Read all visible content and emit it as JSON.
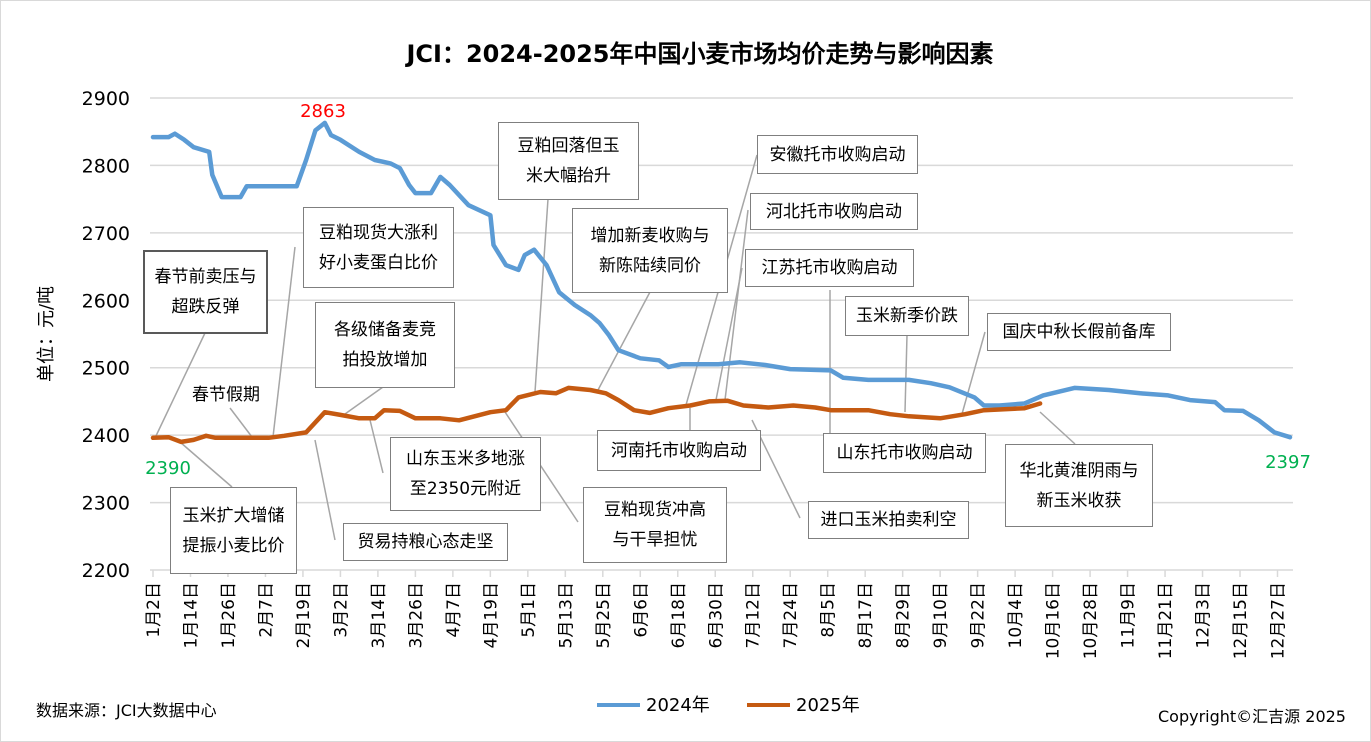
{
  "chart_data": {
    "type": "line",
    "title": "JCI：2024-2025年中国小麦市场均价走势与影响因素",
    "ylabel": "单位：元/吨",
    "xlabel": "",
    "ylim": [
      2200,
      2900
    ],
    "yticks": [
      2200,
      2300,
      2400,
      2500,
      2600,
      2700,
      2800,
      2900
    ],
    "x_unit": "day of year offset from 1月2日",
    "x_range": [
      0,
      364
    ],
    "xtick_labels": [
      "1月2日",
      "1月14日",
      "1月26日",
      "2月7日",
      "2月19日",
      "3月2日",
      "3月14日",
      "3月26日",
      "4月7日",
      "4月19日",
      "5月1日",
      "5月13日",
      "5月25日",
      "6月6日",
      "6月18日",
      "6月30日",
      "7月12日",
      "7月24日",
      "8月5日",
      "8月17日",
      "8月29日",
      "9月10日",
      "9月22日",
      "10月4日",
      "10月16日",
      "10月28日",
      "11月9日",
      "11月21日",
      "12月3日",
      "12月15日",
      "12月27日"
    ],
    "grid": true,
    "legend_position": "bottom",
    "series": [
      {
        "name": "2024年",
        "color": "#5b9bd5",
        "points": [
          [
            0,
            2842
          ],
          [
            5,
            2842
          ],
          [
            7,
            2847
          ],
          [
            10,
            2838
          ],
          [
            13,
            2827
          ],
          [
            18,
            2820
          ],
          [
            19,
            2786
          ],
          [
            22,
            2753
          ],
          [
            28,
            2753
          ],
          [
            30,
            2769
          ],
          [
            46,
            2769
          ],
          [
            49,
            2808
          ],
          [
            52,
            2852
          ],
          [
            55,
            2863
          ],
          [
            57,
            2845
          ],
          [
            60,
            2838
          ],
          [
            66,
            2820
          ],
          [
            71,
            2808
          ],
          [
            76,
            2803
          ],
          [
            79,
            2796
          ],
          [
            82,
            2771
          ],
          [
            84,
            2759
          ],
          [
            89,
            2759
          ],
          [
            92,
            2783
          ],
          [
            95,
            2771
          ],
          [
            101,
            2741
          ],
          [
            108,
            2726
          ],
          [
            109,
            2682
          ],
          [
            113,
            2652
          ],
          [
            117,
            2645
          ],
          [
            119,
            2667
          ],
          [
            122,
            2675
          ],
          [
            126,
            2652
          ],
          [
            130,
            2612
          ],
          [
            135,
            2593
          ],
          [
            140,
            2578
          ],
          [
            143,
            2566
          ],
          [
            146,
            2548
          ],
          [
            149,
            2526
          ],
          [
            156,
            2514
          ],
          [
            162,
            2511
          ],
          [
            165,
            2501
          ],
          [
            169,
            2505
          ],
          [
            181,
            2505
          ],
          [
            188,
            2508
          ],
          [
            196,
            2504
          ],
          [
            204,
            2498
          ],
          [
            217,
            2496
          ],
          [
            221,
            2485
          ],
          [
            229,
            2482
          ],
          [
            242,
            2482
          ],
          [
            249,
            2477
          ],
          [
            255,
            2471
          ],
          [
            263,
            2456
          ],
          [
            266,
            2444
          ],
          [
            271,
            2444
          ],
          [
            279,
            2447
          ],
          [
            285,
            2459
          ],
          [
            295,
            2470
          ],
          [
            306,
            2467
          ],
          [
            316,
            2462
          ],
          [
            325,
            2459
          ],
          [
            332,
            2452
          ],
          [
            340,
            2449
          ],
          [
            343,
            2437
          ],
          [
            349,
            2436
          ],
          [
            354,
            2422
          ],
          [
            359,
            2404
          ],
          [
            364,
            2397
          ]
        ]
      },
      {
        "name": "2025年",
        "color": "#c55a11",
        "points": [
          [
            0,
            2396
          ],
          [
            5,
            2397
          ],
          [
            9,
            2390
          ],
          [
            13,
            2393
          ],
          [
            17,
            2399
          ],
          [
            20,
            2396
          ],
          [
            37,
            2396
          ],
          [
            42,
            2399
          ],
          [
            49,
            2404
          ],
          [
            55,
            2434
          ],
          [
            60,
            2430
          ],
          [
            66,
            2425
          ],
          [
            71,
            2425
          ],
          [
            74,
            2437
          ],
          [
            79,
            2436
          ],
          [
            84,
            2425
          ],
          [
            92,
            2425
          ],
          [
            98,
            2422
          ],
          [
            108,
            2434
          ],
          [
            113,
            2437
          ],
          [
            117,
            2456
          ],
          [
            124,
            2464
          ],
          [
            129,
            2462
          ],
          [
            133,
            2470
          ],
          [
            140,
            2467
          ],
          [
            145,
            2462
          ],
          [
            149,
            2452
          ],
          [
            154,
            2437
          ],
          [
            159,
            2433
          ],
          [
            165,
            2440
          ],
          [
            172,
            2444
          ],
          [
            178,
            2450
          ],
          [
            184,
            2451
          ],
          [
            189,
            2444
          ],
          [
            197,
            2441
          ],
          [
            205,
            2444
          ],
          [
            212,
            2441
          ],
          [
            217,
            2437
          ],
          [
            229,
            2437
          ],
          [
            236,
            2431
          ],
          [
            242,
            2428
          ],
          [
            252,
            2425
          ],
          [
            260,
            2431
          ],
          [
            266,
            2437
          ],
          [
            279,
            2440
          ],
          [
            284,
            2447
          ]
        ]
      }
    ],
    "data_labels": {
      "max_2024": "2863",
      "start_2025": "2390",
      "end_2024": "2397"
    },
    "annotations": [
      {
        "lines": [
          "春节前卖压与",
          "超跌反弹"
        ]
      },
      {
        "lines": [
          "春节假期"
        ]
      },
      {
        "lines": [
          "豆粕现货大涨利",
          "好小麦蛋白比价"
        ]
      },
      {
        "lines": [
          "各级储备麦竞",
          "拍投放增加"
        ]
      },
      {
        "lines": [
          "豆粕回落但玉",
          "米大幅抬升"
        ]
      },
      {
        "lines": [
          "增加新麦收购与",
          "新陈陆续同价"
        ]
      },
      {
        "lines": [
          "安徽托市收购启动"
        ]
      },
      {
        "lines": [
          "河北托市收购启动"
        ]
      },
      {
        "lines": [
          "江苏托市收购启动"
        ]
      },
      {
        "lines": [
          "玉米新季价跌"
        ]
      },
      {
        "lines": [
          "国庆中秋长假前备库"
        ]
      },
      {
        "lines": [
          "山东托市收购启动"
        ]
      },
      {
        "lines": [
          "河南托市收购启动"
        ]
      },
      {
        "lines": [
          "进口玉米拍卖利空"
        ]
      },
      {
        "lines": [
          "华北黄淮阴雨与",
          "新玉米收获"
        ]
      },
      {
        "lines": [
          "山东玉米多地涨",
          "至2350元附近"
        ]
      },
      {
        "lines": [
          "豆粕现货冲高",
          "与干旱担忧"
        ]
      },
      {
        "lines": [
          "玉米扩大增储",
          "提振小麦比价"
        ]
      },
      {
        "lines": [
          "贸易持粮心态走坚"
        ]
      }
    ]
  },
  "footer": {
    "source": "数据来源：JCI大数据中心",
    "copyright": "Copyright©汇吉源 2025"
  }
}
